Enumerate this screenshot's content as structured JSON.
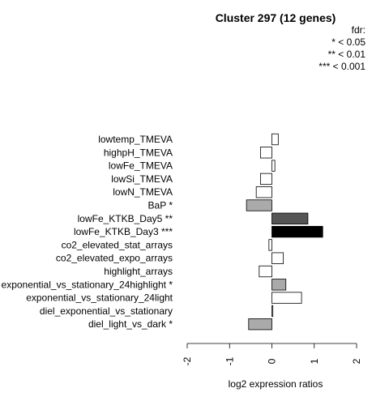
{
  "chart_data": {
    "type": "bar",
    "orientation": "horizontal",
    "title": "Cluster 297 (12 genes)",
    "xlabel": "log2 expression ratios",
    "ylabel": "",
    "xlim": [
      -2,
      2
    ],
    "xticks": [
      "-2",
      "-1",
      "0",
      "1",
      "2"
    ],
    "legend": {
      "title": "fdr:",
      "entries": [
        "* < 0.05",
        "** < 0.01",
        "*** < 0.001"
      ],
      "placement": "top-right"
    },
    "categories": [
      "lowtemp_TMEVA",
      "highpH_TMEVA",
      "lowFe_TMEVA",
      "lowSi_TMEVA",
      "lowN_TMEVA",
      "BaP *",
      "lowFe_KTKB_Day5 **",
      "lowFe_KTKB_Day3 ***",
      "co2_elevated_stat_arrays",
      "co2_elevated_expo_arrays",
      "highlight_arrays",
      "exponential_vs_stationary_24highlight *",
      "exponential_vs_stationary_24light",
      "diel_exponential_vs_stationary",
      "diel_light_vs_dark *"
    ],
    "values": [
      0.15,
      -0.27,
      0.07,
      -0.27,
      -0.37,
      -0.6,
      0.85,
      1.2,
      -0.07,
      0.27,
      -0.3,
      0.33,
      0.7,
      0.02,
      -0.55
    ],
    "colors": [
      "#ffffff",
      "#ffffff",
      "#ffffff",
      "#ffffff",
      "#ffffff",
      "#aaaaaa",
      "#555555",
      "#000000",
      "#ffffff",
      "#ffffff",
      "#ffffff",
      "#aaaaaa",
      "#ffffff",
      "#ffffff",
      "#aaaaaa"
    ]
  }
}
